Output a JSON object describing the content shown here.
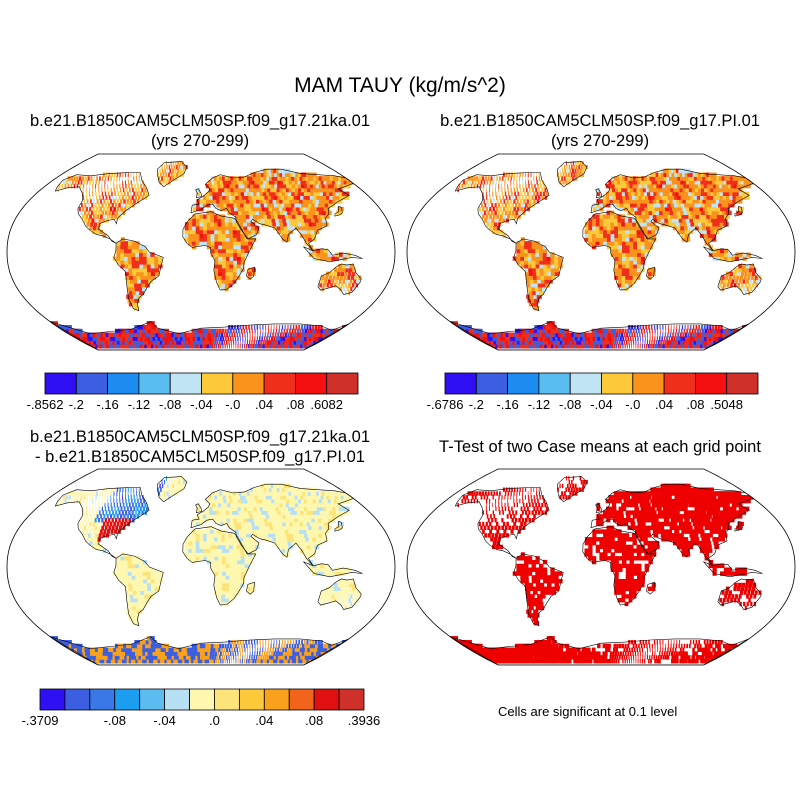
{
  "title": "MAM TAUY (kg/m/s^2)",
  "panels": [
    {
      "id": "case1",
      "title_line1": "b.e21.B1850CAM5CLM50SP.f09_g17.21ka.01",
      "title_line2": "(yrs 270-299)",
      "palette": "diverging-10"
    },
    {
      "id": "case2",
      "title_line1": "b.e21.B1850CAM5CLM50SP.f09_g17.PI.01",
      "title_line2": "(yrs 270-299)",
      "palette": "diverging-10"
    },
    {
      "id": "difference",
      "title_line1": "b.e21.B1850CAM5CLM50SP.f09_g17.21ka.01",
      "title_line2": "- b.e21.B1850CAM5CLM50SP.f09_g17.PI.01",
      "palette": "diverging-13"
    },
    {
      "id": "ttest",
      "title_line1": "T-Test of two Case means at each grid point",
      "note": "Cells are significant at 0.1 level",
      "palette": "significance"
    }
  ],
  "colorbars": [
    {
      "id": "cb1",
      "colors": [
        "#2f10f5",
        "#3b5fe0",
        "#1c8cf0",
        "#5bbcf0",
        "#c0e4f4",
        "#fbc93a",
        "#f9931c",
        "#f02e1c",
        "#f51010",
        "#d0302a"
      ],
      "labels": [
        "-.8562",
        "-.2",
        "-.16",
        "-.12",
        "-.08",
        "-.04",
        "-.0",
        ".04",
        ".08",
        ".6082"
      ]
    },
    {
      "id": "cb2",
      "colors": [
        "#2f10f5",
        "#3b5fe0",
        "#1c8cf0",
        "#5bbcf0",
        "#c0e4f4",
        "#fbc93a",
        "#f9931c",
        "#f02e1c",
        "#f51010",
        "#d0302a"
      ],
      "labels": [
        "-.6786",
        "-.2",
        "-.16",
        "-.12",
        "-.08",
        "-.04",
        "-.0",
        ".04",
        ".08",
        ".5048"
      ]
    },
    {
      "id": "cb3",
      "colors": [
        "#2f10f5",
        "#3b5fe0",
        "#3a78e8",
        "#1c9ef0",
        "#5bbcf0",
        "#b8e0f4",
        "#fdf7b0",
        "#fde47a",
        "#fbc93a",
        "#f9a11c",
        "#f0641c",
        "#e01010",
        "#d0302a"
      ],
      "labels": [
        "-.3709",
        "-.08",
        "-.04",
        ".0",
        ".04",
        ".08",
        ".3936"
      ],
      "label_box_edges": [
        0,
        3,
        5,
        7,
        9,
        11,
        13
      ]
    }
  ],
  "map_colors": {
    "ocean": "#ffffff",
    "outline": "#000000",
    "significant": "#ee0000"
  }
}
